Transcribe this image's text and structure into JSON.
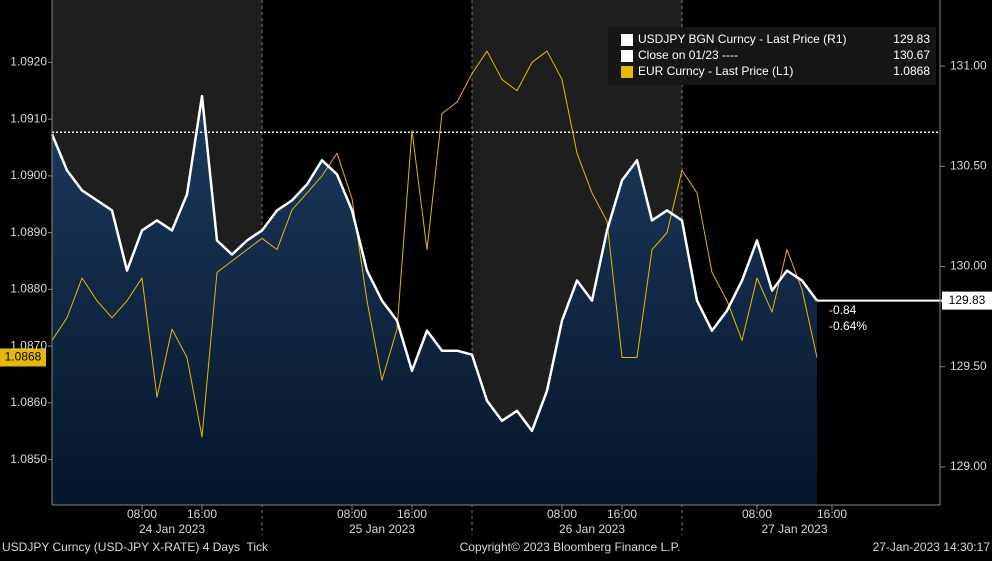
{
  "chart_data": {
    "type": "line",
    "categories": [
      null,
      null,
      null,
      null,
      null,
      null,
      "08:00",
      null,
      null,
      null,
      "16:00",
      null,
      null,
      null,
      null,
      null,
      null,
      null,
      null,
      null,
      "08:00",
      null,
      null,
      null,
      "16:00",
      null,
      null,
      null,
      null,
      null,
      null,
      null,
      null,
      null,
      "08:00",
      null,
      null,
      null,
      "16:00",
      null,
      null,
      null,
      null,
      null,
      null,
      null,
      null,
      "08:00",
      null,
      null,
      null,
      null,
      "16:00",
      null,
      null,
      null,
      null,
      null,
      null,
      null
    ],
    "dates": [
      "24 Jan 2023",
      "25 Jan 2023",
      "26 Jan 2023",
      "27 Jan 2023"
    ],
    "series": [
      {
        "name": "USDJPY BGN Curncy - Last Price (R1)",
        "color": "#ffffff",
        "axis": "y2",
        "values": [
          130.66,
          130.48,
          130.38,
          130.33,
          130.28,
          129.98,
          130.18,
          130.23,
          130.18,
          130.36,
          130.85,
          130.13,
          130.06,
          130.13,
          130.18,
          130.28,
          130.33,
          130.41,
          130.53,
          130.46,
          130.28,
          129.98,
          129.83,
          129.73,
          129.48,
          129.68,
          129.58,
          129.58,
          129.56,
          129.33,
          129.23,
          129.28,
          129.18,
          129.38,
          129.73,
          129.93,
          129.83,
          130.18,
          130.43,
          130.53,
          130.23,
          130.28,
          130.23,
          129.83,
          129.68,
          129.78,
          129.93,
          130.13,
          129.88,
          129.98,
          129.93,
          129.83,
          null,
          null,
          null,
          null,
          null,
          null,
          null,
          null
        ]
      },
      {
        "name": "EUR Curncy - Last Price (L1)",
        "color": "#e6b800",
        "values": [
          1.0871,
          1.0875,
          1.0882,
          1.0878,
          1.0875,
          1.0878,
          1.0882,
          1.0861,
          1.0873,
          1.0868,
          1.0854,
          1.0883,
          1.0885,
          1.0887,
          1.0889,
          1.0887,
          1.0894,
          1.0897,
          1.09,
          1.0904,
          1.0896,
          1.0878,
          1.0864,
          1.0873,
          1.0908,
          1.0887,
          1.0911,
          1.0913,
          1.0918,
          1.0922,
          1.0917,
          1.0915,
          1.092,
          1.0922,
          1.0917,
          1.0904,
          1.0897,
          1.0892,
          1.0868,
          1.0868,
          1.0887,
          1.089,
          1.0901,
          1.0897,
          1.0883,
          1.0878,
          1.0871,
          1.0882,
          1.0876,
          1.0887,
          1.088,
          1.0868,
          null,
          null,
          null,
          null,
          null,
          null,
          null,
          null
        ]
      }
    ],
    "reference_lines": [
      {
        "name": "Close on 01/23 ----",
        "value": 130.67,
        "axis": "y2",
        "color": "#ffffff"
      }
    ],
    "annotations": [
      "-0.84",
      "-0.64%"
    ],
    "ylim": [
      1.0842,
      1.0931
    ],
    "yticks": [
      {
        "value": 1.085,
        "label": "1.0850"
      },
      {
        "value": 1.086,
        "label": "1.0860"
      },
      {
        "value": 1.087,
        "label": "1.0870"
      },
      {
        "value": 1.088,
        "label": "1.0880"
      },
      {
        "value": 1.089,
        "label": "1.0890"
      },
      {
        "value": 1.09,
        "label": "1.0900"
      },
      {
        "value": 1.091,
        "label": "1.0910"
      },
      {
        "value": 1.092,
        "label": "1.0920"
      }
    ],
    "y2lim": [
      128.81,
      131.33
    ],
    "y2ticks": [
      {
        "value": 129,
        "label": "129.00"
      },
      {
        "value": 129.5,
        "label": "129.50"
      },
      {
        "value": 130,
        "label": "130.00"
      },
      {
        "value": 130.5,
        "label": "130.50"
      },
      {
        "value": 131,
        "label": "131.00"
      }
    ],
    "footer": {
      "left": "USDJPY Curncy (USD-JPY X-RATE) 4 Days  Tick",
      "center": "Copyright© 2023 Bloomberg Finance L.P.",
      "right": "27-Jan-2023 14:30:17"
    }
  }
}
